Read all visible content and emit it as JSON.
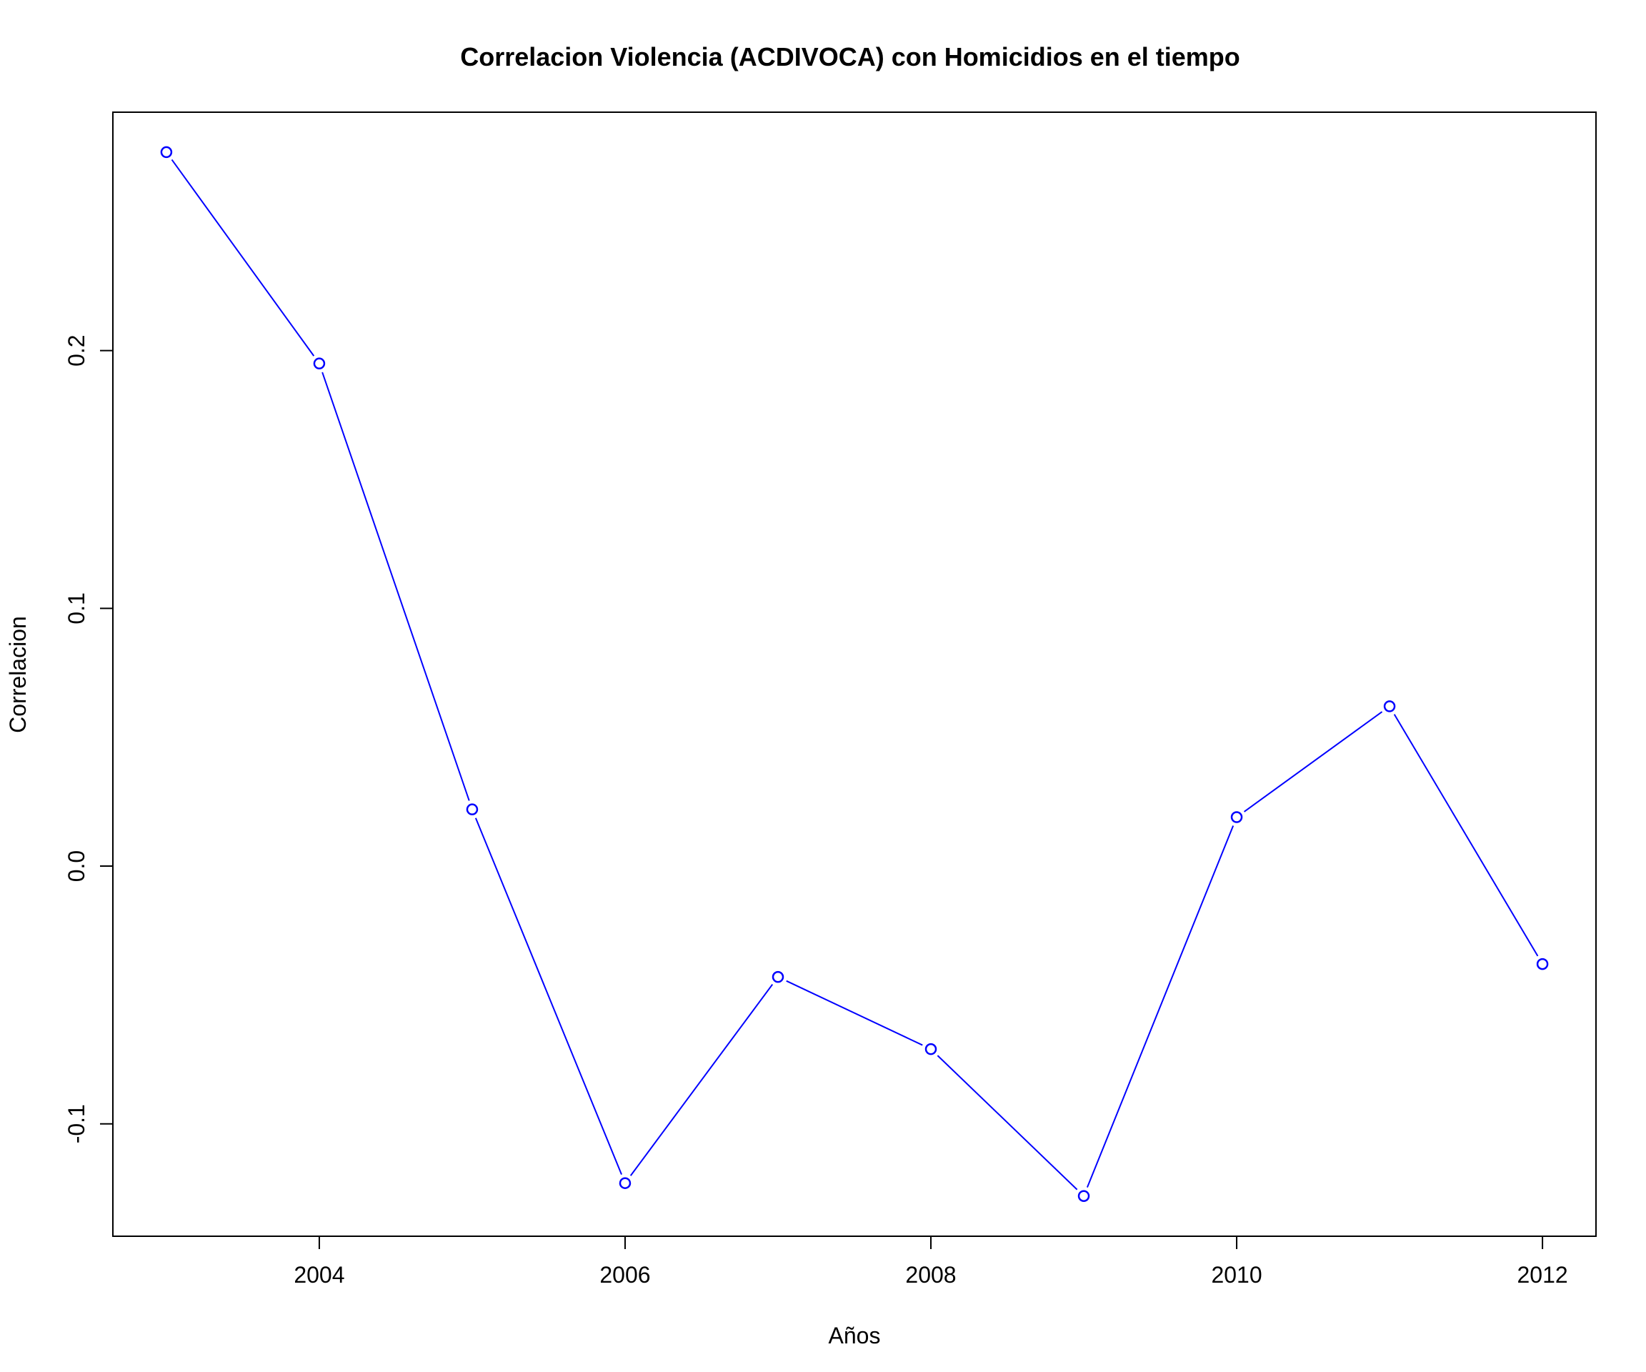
{
  "chart_data": {
    "type": "line",
    "title": "Correlacion Violencia (ACDIVOCA) con Homicidios en el tiempo",
    "xlabel": "Años",
    "ylabel": "Correlacion",
    "x": [
      2003,
      2004,
      2005,
      2006,
      2007,
      2008,
      2009,
      2010,
      2011,
      2012
    ],
    "series": [
      {
        "values": [
          0.277,
          0.195,
          0.022,
          -0.123,
          -0.043,
          -0.071,
          -0.128,
          0.019,
          0.062,
          -0.038
        ],
        "color": "#0000ff",
        "marker": "open-circle"
      }
    ],
    "x_ticks": [
      2004,
      2006,
      2008,
      2010,
      2012
    ],
    "y_ticks": [
      -0.1,
      0.0,
      0.1,
      0.2
    ],
    "x_tick_labels": [
      "2004",
      "2006",
      "2008",
      "2010",
      "2012"
    ],
    "y_tick_labels": [
      "-0.1",
      "0.0",
      "0.1",
      "0.2"
    ],
    "xlim": [
      2002.65,
      2012.35
    ],
    "ylim": [
      -0.1436,
      0.2925
    ],
    "grid": false,
    "legend": "none"
  }
}
